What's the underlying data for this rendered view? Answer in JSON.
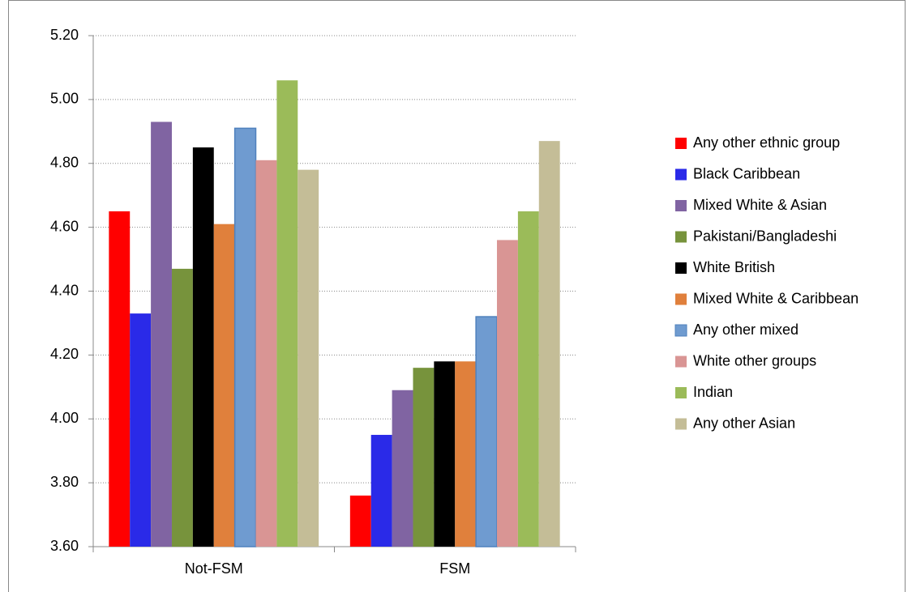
{
  "chart_data": {
    "type": "bar",
    "categories": [
      "Not-FSM",
      "FSM"
    ],
    "series": [
      {
        "name": "Any other ethnic group",
        "color": "#ff0000",
        "values": [
          4.65,
          3.76
        ]
      },
      {
        "name": "Black Caribbean",
        "color": "#2a2ae8",
        "values": [
          4.33,
          3.95
        ]
      },
      {
        "name": "Mixed White & Asian",
        "color": "#8064a2",
        "values": [
          4.93,
          4.09
        ]
      },
      {
        "name": "Pakistani/Bangladeshi",
        "color": "#77933c",
        "values": [
          4.47,
          4.16
        ]
      },
      {
        "name": "White British",
        "color": "#000000",
        "values": [
          4.85,
          4.18
        ]
      },
      {
        "name": "Mixed White & Caribbean",
        "color": "#e0803c",
        "values": [
          4.61,
          4.18
        ]
      },
      {
        "name": "Any other mixed",
        "color": "#6f9bd0",
        "values": [
          4.91,
          4.32
        ]
      },
      {
        "name": "White other groups",
        "color": "#d99594",
        "values": [
          4.81,
          4.56
        ]
      },
      {
        "name": "Indian",
        "color": "#9bbb59",
        "values": [
          5.06,
          4.65
        ]
      },
      {
        "name": "Any other Asian",
        "color": "#c4bd97",
        "values": [
          4.78,
          4.87
        ]
      }
    ],
    "ylim": [
      3.6,
      5.2
    ],
    "yticks": [
      {
        "value": 3.6,
        "label": "3.60"
      },
      {
        "value": 3.8,
        "label": "3.80"
      },
      {
        "value": 4.0,
        "label": "4.00"
      },
      {
        "value": 4.2,
        "label": "4.20"
      },
      {
        "value": 4.4,
        "label": "4.40"
      },
      {
        "value": 4.6,
        "label": "4.60"
      },
      {
        "value": 4.8,
        "label": "4.80"
      },
      {
        "value": 5.0,
        "label": "5.00"
      },
      {
        "value": 5.2,
        "label": "5.20"
      }
    ],
    "grid": true,
    "legend": "right"
  }
}
